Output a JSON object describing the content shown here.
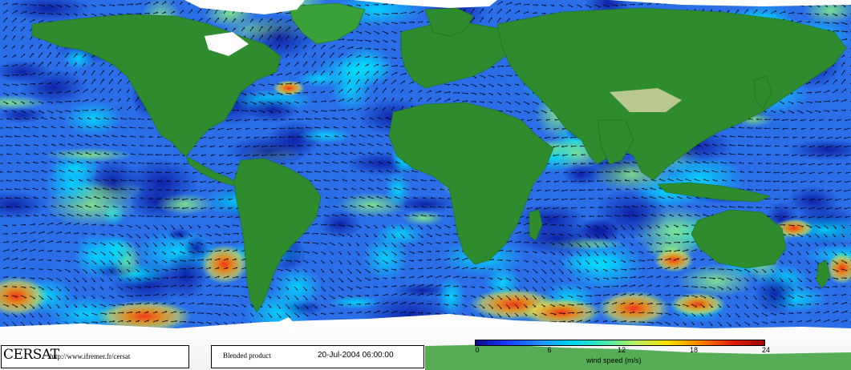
{
  "footer": {
    "logo": "CERSAT",
    "url": "http://www.ifremer.fr/cersat",
    "product": "Blended product",
    "datetime": "20-Jul-2004 06:00:00"
  },
  "colorbar": {
    "label": "wind speed (m/s)",
    "min": 0,
    "max": 24,
    "ticks": [
      "0",
      "6",
      "12",
      "18",
      "24"
    ],
    "colors": [
      "#0a0a8c",
      "#1a3cff",
      "#1e90ff",
      "#00d4f0",
      "#40e8b0",
      "#b8f060",
      "#ffe000",
      "#ff8000",
      "#e02000",
      "#a00000"
    ]
  },
  "map": {
    "ocean_base_color": "#2a6fe8",
    "land_color": "#2e8b2e",
    "ice_color": "#ffffff"
  }
}
